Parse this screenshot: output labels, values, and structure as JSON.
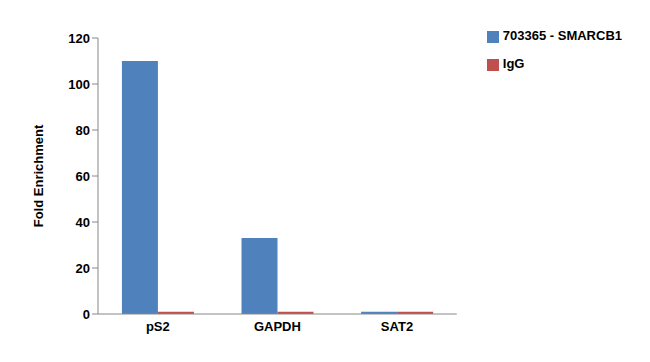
{
  "chart_data": {
    "type": "bar",
    "y_label": "Fold Enrichment",
    "categories": [
      "pS2",
      "GAPDH",
      "SAT2"
    ],
    "series": [
      {
        "name": "703365 - SMARCB1",
        "color": "#4f81bd",
        "values": [
          110,
          33,
          1
        ]
      },
      {
        "name": "IgG",
        "color": "#c0504d",
        "values": [
          1,
          1,
          1
        ]
      }
    ],
    "ylim": [
      0,
      120
    ],
    "yticks": [
      0,
      20,
      40,
      60,
      80,
      100,
      120
    ],
    "grid": false,
    "legend": "upper right"
  }
}
